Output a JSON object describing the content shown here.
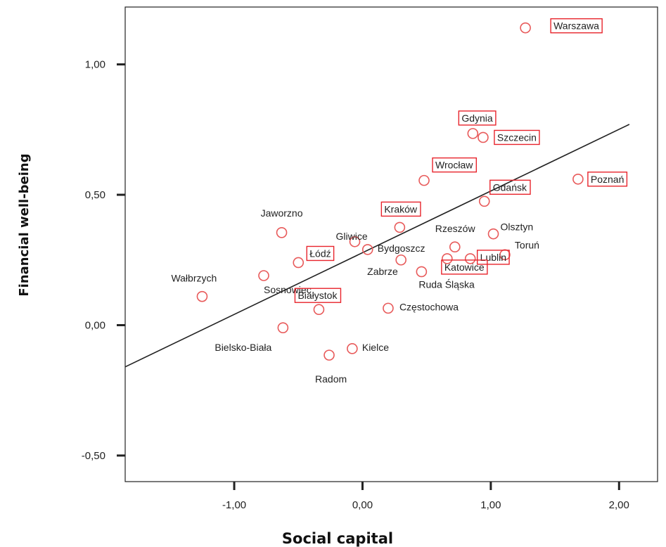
{
  "chart_data": {
    "type": "scatter",
    "xlabel": "Social capital",
    "ylabel": "Financial well-being",
    "xlim": [
      -1.85,
      2.3
    ],
    "ylim": [
      -0.6,
      1.22
    ],
    "xticks": [
      -1.0,
      0.0,
      1.0,
      2.0
    ],
    "xtick_labels": [
      "-1,00",
      "0,00",
      "1,00",
      "2,00"
    ],
    "yticks": [
      -0.5,
      0.0,
      0.5,
      1.0
    ],
    "ytick_labels": [
      "-0,50",
      "0,00",
      "0,50",
      "1,00"
    ],
    "grid": false,
    "fit_line": {
      "x": [
        -1.85,
        2.08
      ],
      "y": [
        -0.16,
        0.77
      ]
    },
    "marker_color": "#e85a5a",
    "box_color": "#e8242c",
    "points": [
      {
        "label": "Warszawa",
        "x": 1.27,
        "y": 1.14,
        "boxed": true
      },
      {
        "label": "Gdynia",
        "x": 0.86,
        "y": 0.735,
        "boxed": true
      },
      {
        "label": "Szczecin",
        "x": 0.94,
        "y": 0.72,
        "boxed": true
      },
      {
        "label": "Wrocław",
        "x": 0.48,
        "y": 0.555,
        "boxed": true
      },
      {
        "label": "Poznań",
        "x": 1.68,
        "y": 0.56,
        "boxed": true
      },
      {
        "label": "Gdańsk",
        "x": 0.95,
        "y": 0.475,
        "boxed": true
      },
      {
        "label": "Kraków",
        "x": 0.29,
        "y": 0.375,
        "boxed": true
      },
      {
        "label": "Jaworzno",
        "x": -0.63,
        "y": 0.355,
        "boxed": false
      },
      {
        "label": "Gliwice",
        "x": -0.06,
        "y": 0.32,
        "boxed": false
      },
      {
        "label": "Rzeszów",
        "x": 0.72,
        "y": 0.3,
        "boxed": false
      },
      {
        "label": "Olsztyn",
        "x": 1.02,
        "y": 0.35,
        "boxed": false
      },
      {
        "label": "Bydgoszcz",
        "x": 0.04,
        "y": 0.29,
        "boxed": false
      },
      {
        "label": "Łódź",
        "x": -0.5,
        "y": 0.24,
        "boxed": true
      },
      {
        "label": "Toruń",
        "x": 1.11,
        "y": 0.27,
        "boxed": false
      },
      {
        "label": "Lublin",
        "x": 0.84,
        "y": 0.255,
        "boxed": true
      },
      {
        "label": "Zabrze",
        "x": 0.3,
        "y": 0.25,
        "boxed": false
      },
      {
        "label": "Katowice",
        "x": 0.66,
        "y": 0.255,
        "boxed": true
      },
      {
        "label": "Ruda Śląska",
        "x": 0.46,
        "y": 0.205,
        "boxed": false
      },
      {
        "label": "Wałbrzych",
        "x": -1.25,
        "y": 0.11,
        "boxed": false
      },
      {
        "label": "Sosnowiec",
        "x": -0.77,
        "y": 0.19,
        "boxed": false
      },
      {
        "label": "Białystok",
        "x": -0.34,
        "y": 0.06,
        "boxed": true
      },
      {
        "label": "Częstochowa",
        "x": 0.2,
        "y": 0.065,
        "boxed": false
      },
      {
        "label": "Bielsko-Biała",
        "x": -0.62,
        "y": -0.01,
        "boxed": false
      },
      {
        "label": "Kielce",
        "x": -0.08,
        "y": -0.09,
        "boxed": false
      },
      {
        "label": "Radom",
        "x": -0.26,
        "y": -0.115,
        "boxed": false
      }
    ]
  }
}
